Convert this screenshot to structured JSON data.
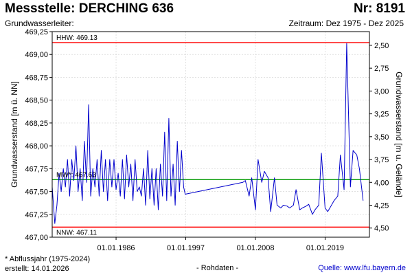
{
  "header": {
    "title": "Messstelle: DERCHING 636",
    "number": "Nr: 8191",
    "aquifer_label": "Grundwasserleiter:",
    "period": "Zeitraum: Dez 1975 - Dez 2025"
  },
  "footer": {
    "note": "* Abflussjahr (1975-2024)",
    "created": "erstellt:  14.01.2026",
    "raw": "- Rohdaten -",
    "source": "Quelle: www.lfu.bayern.de"
  },
  "colors": {
    "series": "#0000cc",
    "hhw_nnw": "#ff0000",
    "mw": "#009900",
    "grid": "#d0d0d0"
  },
  "chart_data": {
    "type": "line",
    "ylabel": "Grundwasserstand [m ü. NN]",
    "ylabel_right": "Grundwasserstand [m u. Gelände]",
    "ylim": [
      467.0,
      469.25
    ],
    "xlim": [
      "1975-12-01",
      "2025-12-31"
    ],
    "yticks": [
      "467,00",
      "467,25",
      "467,50",
      "467,75",
      "468,00",
      "468,25",
      "468,50",
      "468,75",
      "469,00",
      "469,25"
    ],
    "yticks_right": [
      "2,50",
      "2,75",
      "3,00",
      "3,25",
      "3,50",
      "3,75",
      "4,00",
      "4,25",
      "4,50"
    ],
    "xticks": [
      "01.01.1986",
      "01.01.1997",
      "01.01.2008",
      "01.01.2019"
    ],
    "grid": true,
    "reference_lines": [
      {
        "label": "HHW: 469.13",
        "value": 469.13
      },
      {
        "label": "MW*: 467.63",
        "value": 467.63
      },
      {
        "label": "NNW: 467.11",
        "value": 467.11
      }
    ],
    "series": [
      {
        "x": [
          "1975-12-01",
          "1976-05-01",
          "1976-09-01",
          "1977-01-01",
          "1977-05-01",
          "1977-09-01",
          "1978-01-01",
          "1978-05-01",
          "1978-09-01",
          "1979-01-01",
          "1979-05-01",
          "1979-09-01",
          "1980-01-01",
          "1980-05-01",
          "1980-09-01",
          "1981-01-01",
          "1981-05-01",
          "1981-09-01",
          "1982-01-01",
          "1982-05-01",
          "1982-09-01",
          "1983-01-01",
          "1983-05-01",
          "1983-09-01",
          "1984-01-01",
          "1984-05-01",
          "1984-09-01",
          "1985-01-01",
          "1985-05-01",
          "1985-09-01",
          "1986-01-01",
          "1986-05-01",
          "1986-09-01",
          "1987-01-01",
          "1987-05-01",
          "1987-09-01",
          "1988-01-01",
          "1988-05-01",
          "1988-09-01",
          "1989-01-01",
          "1989-05-01",
          "1989-09-01",
          "1990-01-01",
          "1990-05-01",
          "1990-09-01",
          "1991-01-01",
          "1991-05-01",
          "1991-09-01",
          "1992-01-01",
          "1992-05-01",
          "1992-09-01",
          "1993-01-01",
          "1993-05-01",
          "1993-09-01",
          "1994-01-01",
          "1994-05-01",
          "1994-09-01",
          "1995-01-01",
          "1995-05-01",
          "1995-09-01",
          "1996-01-01",
          "1996-05-01",
          "1996-09-01",
          "1996-12-01",
          "2006-01-01",
          "2006-06-01",
          "2007-01-01",
          "2007-06-01",
          "2008-01-01",
          "2008-06-01",
          "2009-01-01",
          "2009-06-01",
          "2010-01-01",
          "2010-06-01",
          "2011-01-01",
          "2011-06-01",
          "2012-01-01",
          "2012-06-01",
          "2013-01-01",
          "2013-06-01",
          "2014-01-01",
          "2014-06-01",
          "2015-01-01",
          "2015-06-01",
          "2016-01-01",
          "2016-06-01",
          "2017-01-01",
          "2017-06-01",
          "2018-01-01",
          "2018-06-01",
          "2019-01-01",
          "2019-06-01",
          "2020-01-01",
          "2020-06-01",
          "2021-01-01",
          "2021-06-01",
          "2022-01-01",
          "2022-06-01",
          "2023-01-01",
          "2023-06-01",
          "2024-01-01",
          "2024-06-01",
          "2025-01-01"
        ],
        "values": [
          467.55,
          467.15,
          467.35,
          467.7,
          467.5,
          467.75,
          467.55,
          467.85,
          467.45,
          467.85,
          467.62,
          468.0,
          467.5,
          467.75,
          467.4,
          468.05,
          467.6,
          468.45,
          467.45,
          467.75,
          467.55,
          467.85,
          467.45,
          467.95,
          467.5,
          467.85,
          467.4,
          467.85,
          467.55,
          467.85,
          467.52,
          467.7,
          467.45,
          467.85,
          467.42,
          467.9,
          467.55,
          467.8,
          467.4,
          467.85,
          467.5,
          467.55,
          467.45,
          467.75,
          467.35,
          467.95,
          467.42,
          467.75,
          467.35,
          467.75,
          467.3,
          467.8,
          467.45,
          468.15,
          467.4,
          468.3,
          467.45,
          467.8,
          467.35,
          468.05,
          467.5,
          467.95,
          467.55,
          467.47,
          467.6,
          467.62,
          467.45,
          467.65,
          467.3,
          467.85,
          467.6,
          467.72,
          467.65,
          467.28,
          467.65,
          467.35,
          467.32,
          467.35,
          467.34,
          467.32,
          467.35,
          467.52,
          467.3,
          467.32,
          467.34,
          467.36,
          467.25,
          467.3,
          467.35,
          467.92,
          467.32,
          467.28,
          467.35,
          467.4,
          467.45,
          467.9,
          467.52,
          469.12,
          467.55,
          467.95,
          467.9,
          467.75,
          467.4
        ]
      }
    ]
  }
}
